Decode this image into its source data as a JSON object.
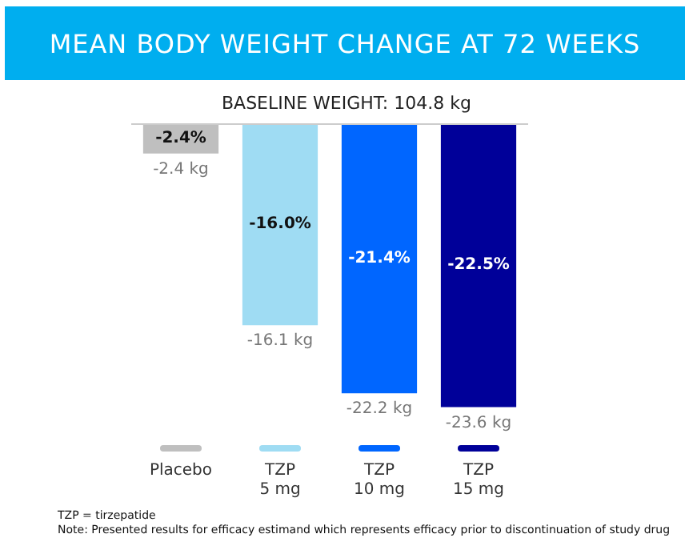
{
  "chart_data": {
    "type": "bar",
    "title": "MEAN BODY WEIGHT CHANGE AT 72 WEEKS",
    "subtitle": "BASELINE WEIGHT: 104.8 kg",
    "categories": [
      "Placebo",
      "TZP 5 mg",
      "TZP 10 mg",
      "TZP 15 mg"
    ],
    "values": [
      -2.4,
      -16.0,
      -21.4,
      -22.5
    ],
    "colors": [
      "#bfbfbf",
      "#9fdcf3",
      "#0066ff",
      "#000099"
    ],
    "value_labels": [
      "-2.4%",
      "-16.0%",
      "-21.4%",
      "-22.5%"
    ],
    "annotations": [
      {
        "text": "-2.4 kg",
        "x": "Placebo",
        "y": -2.4
      },
      {
        "text": "-16.1 kg",
        "x": "TZP 5 mg",
        "y": -16.0
      },
      {
        "text": "-22.2 kg",
        "x": "TZP 10 mg",
        "y": -21.4
      },
      {
        "text": "-23.6 kg",
        "x": "TZP 15 mg",
        "y": -22.5
      },
      "TZP = tirzepatide",
      "Note: Presented results for efficacy estimand which represents efficacy prior to discontinuation of study drug"
    ],
    "tick_labels": "x",
    "grid": false
  }
}
